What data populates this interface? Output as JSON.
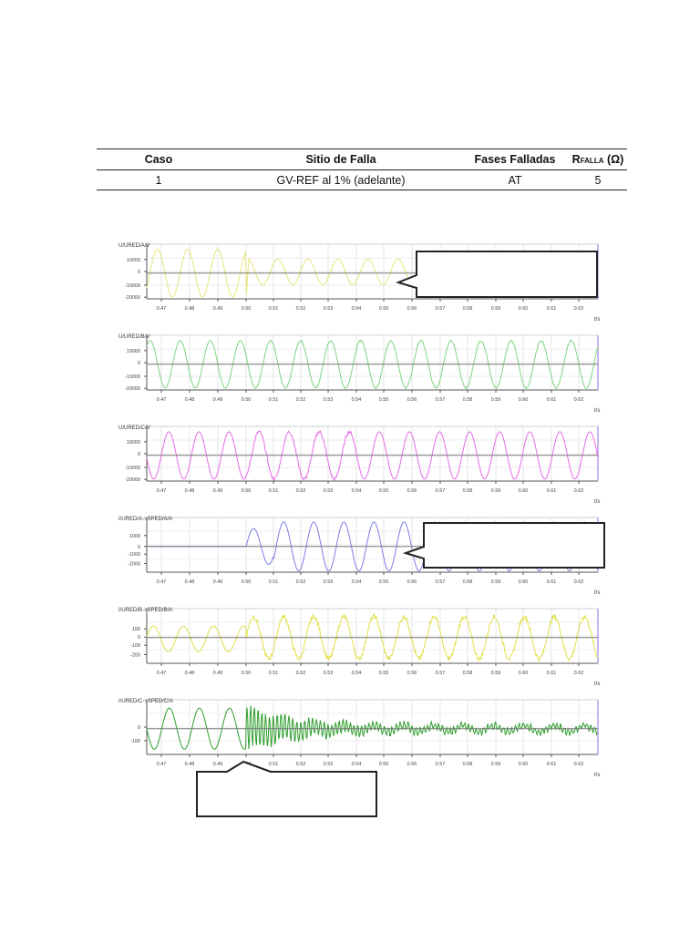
{
  "table": {
    "headers": [
      "Caso",
      "Sitio de Falla",
      "Fases Falladas",
      "R",
      "FALLA",
      " (Ω)"
    ],
    "rows": [
      {
        "caso": "1",
        "sitio": "GV-REF al 1% (adelante)",
        "fases": "AT",
        "rfalla": "5"
      }
    ]
  },
  "chart_data": [
    {
      "type": "line",
      "title": "",
      "ylabel": "U/URED/A/V",
      "xlabel": "t/s",
      "color": "#e6e67a",
      "yticks": [
        "10000",
        "0",
        "-10000",
        "-20000"
      ],
      "ylim": [
        -20000,
        20000
      ],
      "xticks": [
        "0.47",
        "0.48",
        "0.49",
        "0.50",
        "0.51",
        "0.52",
        "0.53",
        "0.54",
        "0.55",
        "0.56",
        "0.57",
        "0.58",
        "0.59",
        "0.60",
        "0.61",
        "0.62"
      ],
      "grid": true,
      "description": "Phase A voltage, 60Hz sinusoid ~17kV peak; at fault t=0.50 sudden drop then reduced amplitude ~9kV"
    },
    {
      "type": "line",
      "ylabel": "U/URED/B/V",
      "xlabel": "t/s",
      "color": "#7fd47f",
      "yticks": [
        "10000",
        "0",
        "-10000",
        "-20000"
      ],
      "ylim": [
        -20000,
        20000
      ],
      "xticks": [
        "0.47",
        "0.48",
        "0.49",
        "0.50",
        "0.51",
        "0.52",
        "0.53",
        "0.54",
        "0.55",
        "0.56",
        "0.57",
        "0.58",
        "0.59",
        "0.60",
        "0.61",
        "0.62"
      ],
      "grid": true,
      "description": "Phase B voltage, ~17kV peak, slight distortion after fault"
    },
    {
      "type": "line",
      "ylabel": "U/URED/C/V",
      "xlabel": "t/s",
      "color": "#e86be8",
      "yticks": [
        "10000",
        "0",
        "-10000",
        "-20000"
      ],
      "ylim": [
        -20000,
        20000
      ],
      "xticks": [
        "0.47",
        "0.48",
        "0.49",
        "0.50",
        "0.51",
        "0.52",
        "0.53",
        "0.54",
        "0.55",
        "0.56",
        "0.57",
        "0.58",
        "0.59",
        "0.60",
        "0.61",
        "0.62"
      ],
      "grid": true,
      "description": "Phase C voltage, ~17kV peak, noisy after fault"
    },
    {
      "type": "line",
      "ylabel": "I/URED/A->SPED/A/A",
      "xlabel": "t/s",
      "color": "#7d7de8",
      "yticks": [
        "1000",
        "0",
        "-1000",
        "-2000"
      ],
      "ylim": [
        -3000,
        3000
      ],
      "xticks": [
        "0.47",
        "0.48",
        "0.49",
        "0.50",
        "0.51",
        "0.52",
        "0.53",
        "0.54",
        "0.55",
        "0.56",
        "0.57",
        "0.58",
        "0.59",
        "0.60",
        "0.61",
        "0.62"
      ],
      "grid": true,
      "description": "Phase A current zero before t=0.50, then sinusoid ~2800A peak"
    },
    {
      "type": "line",
      "ylabel": "I/URED/B->SPED/B/A",
      "xlabel": "t/s",
      "color": "#e0e04a",
      "yticks": [
        "100",
        "0",
        "-100",
        "-200"
      ],
      "ylim": [
        -300,
        300
      ],
      "xticks": [
        "0.47",
        "0.48",
        "0.49",
        "0.50",
        "0.51",
        "0.52",
        "0.53",
        "0.54",
        "0.55",
        "0.56",
        "0.57",
        "0.58",
        "0.59",
        "0.60",
        "0.61",
        "0.62"
      ],
      "grid": true,
      "description": "Phase B current ~170A peak pre-fault, ~250A noisy post-fault"
    },
    {
      "type": "line",
      "ylabel": "I/URED/C->SPED/C/A",
      "xlabel": "t/s",
      "color": "#2e9e2e",
      "yticks": [
        "0",
        "-100"
      ],
      "ylim": [
        -150,
        150
      ],
      "xticks": [
        "0.47",
        "0.48",
        "0.49",
        "0.50",
        "0.51",
        "0.52",
        "0.53",
        "0.54",
        "0.55",
        "0.56",
        "0.57",
        "0.58",
        "0.59",
        "0.60",
        "0.61",
        "0.62"
      ],
      "grid": true,
      "description": "Phase C current ~160A peak pre-fault, high-frequency oscillation after fault decaying to ~20A noisy sinusoid"
    }
  ],
  "callouts": [
    {
      "id": "callout-1",
      "text": ""
    },
    {
      "id": "callout-2",
      "text": ""
    },
    {
      "id": "callout-3",
      "text": ""
    }
  ]
}
